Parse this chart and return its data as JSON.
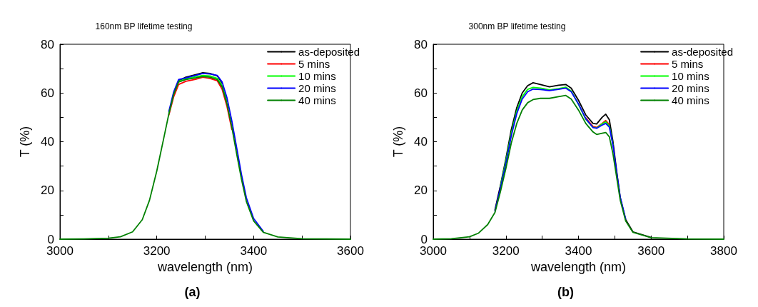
{
  "chart_data": [
    {
      "type": "line",
      "title": "160nm BP lifetime testing",
      "xlabel": "wavelength (nm)",
      "ylabel": "T (%)",
      "annotations": [
        "(a)"
      ],
      "legend": "top right",
      "marker": "none",
      "line_style": "solid",
      "grid": false,
      "xlim": [
        3000,
        3600
      ],
      "xticks": [
        3000,
        {
          "value": 3100,
          "label": null
        },
        3200,
        {
          "value": 3300,
          "label": null
        },
        3400,
        {
          "value": 3500,
          "label": null
        },
        3600
      ],
      "ylim": [
        0,
        80
      ],
      "yticks": [
        0,
        {
          "value": 10,
          "label": null
        },
        20,
        {
          "value": 30,
          "label": null
        },
        40,
        {
          "value": 50,
          "label": null
        },
        60,
        {
          "value": 70,
          "label": null
        },
        80
      ],
      "x": [
        3000,
        3050,
        3100,
        3125,
        3150,
        3170,
        3185,
        3200,
        3215,
        3225,
        3235,
        3245,
        3260,
        3280,
        3295,
        3310,
        3325,
        3335,
        3345,
        3355,
        3365,
        3375,
        3385,
        3400,
        3420,
        3450,
        3500,
        3600
      ],
      "series": [
        {
          "name": "as-deposited",
          "color": "#000000",
          "values": [
            null,
            null,
            null,
            null,
            null,
            null,
            null,
            null,
            null,
            null,
            null,
            65,
            66.5,
            67.5,
            68.3,
            68,
            67,
            64,
            null,
            null,
            null,
            null,
            null,
            null,
            null,
            null,
            null,
            null
          ]
        },
        {
          "name": "5 mins",
          "color": "#ff0000",
          "values": [
            null,
            null,
            null,
            null,
            null,
            null,
            null,
            null,
            null,
            51,
            58.5,
            63.5,
            64.8,
            65.6,
            66.5,
            66,
            65,
            61.5,
            54.5,
            45,
            null,
            null,
            null,
            null,
            null,
            null,
            null,
            null
          ]
        },
        {
          "name": "10 mins",
          "color": "#00ff00",
          "values": [
            null,
            null,
            null,
            null,
            null,
            null,
            null,
            null,
            null,
            51.8,
            59.8,
            64.8,
            65.8,
            66.6,
            67.2,
            67,
            66,
            63,
            56.5,
            null,
            null,
            null,
            null,
            null,
            null,
            null,
            null,
            null
          ]
        },
        {
          "name": "20 mins",
          "color": "#0000ff",
          "values": [
            null,
            null,
            null,
            null,
            null,
            null,
            null,
            null,
            null,
            52.5,
            60.5,
            65.5,
            66.2,
            67.2,
            68,
            67.8,
            67.2,
            64.5,
            58,
            48.5,
            37.5,
            26.5,
            17,
            8.5,
            3.2,
            null,
            null,
            null
          ]
        },
        {
          "name": "40 mins",
          "color": "#008000",
          "values": [
            0,
            0.1,
            0.4,
            1,
            3,
            8,
            16,
            28,
            42,
            51.5,
            59.5,
            64.5,
            65.5,
            66.2,
            66.8,
            66.5,
            65.5,
            62.5,
            55.5,
            46,
            35,
            24.5,
            15.5,
            7.5,
            2.8,
            0.9,
            0.2,
            0
          ]
        }
      ]
    },
    {
      "type": "line",
      "title": "300nm BP lifetime testing",
      "xlabel": "wavelength (nm)",
      "ylabel": "T (%)",
      "annotations": [
        "(b)"
      ],
      "legend": "top right",
      "marker": "none",
      "line_style": "solid",
      "grid": false,
      "xlim": [
        3000,
        3800
      ],
      "xticks": [
        3000,
        {
          "value": 3100,
          "label": null
        },
        3200,
        {
          "value": 3300,
          "label": null
        },
        3400,
        {
          "value": 3500,
          "label": null
        },
        3600,
        {
          "value": 3700,
          "label": null
        },
        3800
      ],
      "ylim": [
        0,
        80
      ],
      "yticks": [
        0,
        {
          "value": 10,
          "label": null
        },
        20,
        {
          "value": 30,
          "label": null
        },
        40,
        {
          "value": 50,
          "label": null
        },
        60,
        {
          "value": 70,
          "label": null
        },
        80
      ],
      "x": [
        3000,
        3050,
        3100,
        3125,
        3150,
        3170,
        3185,
        3200,
        3215,
        3230,
        3245,
        3260,
        3275,
        3295,
        3320,
        3345,
        3365,
        3380,
        3400,
        3420,
        3440,
        3450,
        3465,
        3475,
        3485,
        3495,
        3505,
        3515,
        3530,
        3550,
        3600,
        3700,
        3800
      ],
      "series": [
        {
          "name": "as-deposited",
          "color": "#000000",
          "values": [
            null,
            null,
            null,
            null,
            null,
            12,
            22,
            33,
            45,
            54,
            60,
            63,
            64.2,
            63.5,
            62.5,
            63.2,
            63.5,
            62,
            57,
            51,
            47.5,
            47.3,
            50,
            51.3,
            49,
            40,
            28,
            17,
            8,
            3,
            0.7,
            null,
            null
          ]
        },
        {
          "name": "5 mins",
          "color": "#ff0000",
          "values": [
            null,
            null,
            null,
            null,
            null,
            null,
            null,
            null,
            null,
            null,
            null,
            null,
            null,
            null,
            null,
            null,
            null,
            null,
            null,
            49.8,
            46.3,
            45.9,
            47.5,
            48.7,
            47,
            null,
            null,
            null,
            null,
            null,
            null,
            null,
            null
          ]
        },
        {
          "name": "10 mins",
          "color": "#00ff00",
          "values": [
            null,
            null,
            null,
            null,
            null,
            null,
            21.5,
            32,
            43.5,
            52.5,
            58.5,
            61.5,
            62.3,
            62,
            61.3,
            61.8,
            62.4,
            60.8,
            55.3,
            49.2,
            45.9,
            45.6,
            47.3,
            48.2,
            46.5,
            38.8,
            null,
            null,
            null,
            null,
            null,
            null,
            null
          ]
        },
        {
          "name": "20 mins",
          "color": "#0000ff",
          "values": [
            null,
            null,
            null,
            null,
            null,
            11.5,
            21,
            31,
            42.5,
            51.5,
            57.5,
            60.5,
            61.6,
            61.4,
            61,
            61.5,
            62,
            60.5,
            55.5,
            49.5,
            45.8,
            45.5,
            46.8,
            47.5,
            46,
            38.5,
            27.5,
            17.2,
            8.2,
            null,
            null,
            null,
            null
          ]
        },
        {
          "name": "40 mins",
          "color": "#008000",
          "values": [
            0,
            0.2,
            1,
            2.5,
            6,
            11,
            19.5,
            29,
            39.5,
            47.5,
            53,
            56,
            57.3,
            57.8,
            57.8,
            58.5,
            59,
            57.5,
            53,
            47.5,
            44,
            43,
            43.5,
            43.8,
            42,
            35,
            25.5,
            16,
            7.5,
            2.8,
            0.6,
            0.1,
            0
          ]
        }
      ]
    }
  ]
}
